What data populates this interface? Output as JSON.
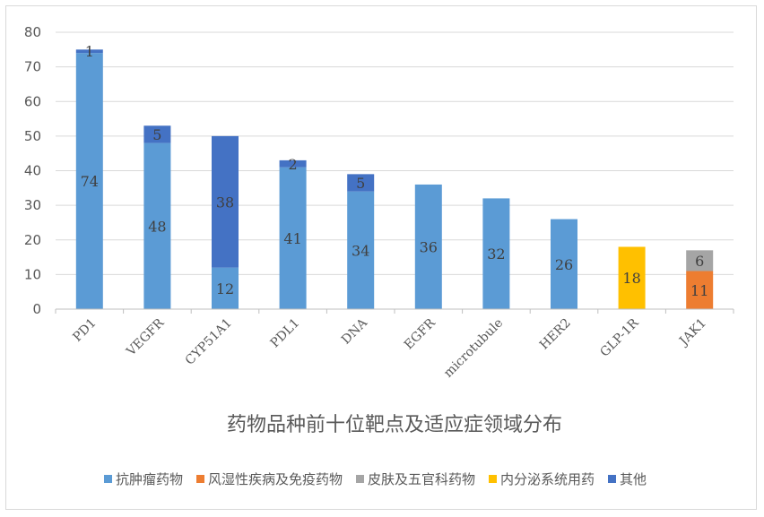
{
  "chart_data": {
    "type": "bar",
    "stacked": true,
    "title": "药物品种前十位靶点及适应症领域分布",
    "categories": [
      "PD1",
      "VEGFR",
      "CYP51A1",
      "PDL1",
      "DNA",
      "EGFR",
      "microtubule",
      "HER2",
      "GLP-1R",
      "JAK1"
    ],
    "ylim": [
      0,
      80
    ],
    "yticks": [
      0,
      10,
      20,
      30,
      40,
      50,
      60,
      70,
      80
    ],
    "grid": true,
    "legend_position": "bottom",
    "series": [
      {
        "name": "抗肿瘤药物",
        "color": "#5b9bd5",
        "values": [
          74,
          48,
          12,
          41,
          34,
          36,
          32,
          26,
          null,
          null
        ]
      },
      {
        "name": "风湿性疾病及免疫药物",
        "color": "#ed7d31",
        "values": [
          null,
          null,
          null,
          null,
          null,
          null,
          null,
          null,
          null,
          11
        ]
      },
      {
        "name": "皮肤及五官科药物",
        "color": "#a5a5a5",
        "values": [
          null,
          null,
          null,
          null,
          null,
          null,
          null,
          null,
          null,
          6
        ]
      },
      {
        "name": "内分泌系统用药",
        "color": "#ffc000",
        "values": [
          null,
          null,
          null,
          null,
          null,
          null,
          null,
          null,
          18,
          null
        ]
      },
      {
        "name": "其他",
        "color": "#4472c4",
        "values": [
          1,
          5,
          38,
          2,
          5,
          null,
          null,
          null,
          null,
          null
        ]
      }
    ]
  }
}
